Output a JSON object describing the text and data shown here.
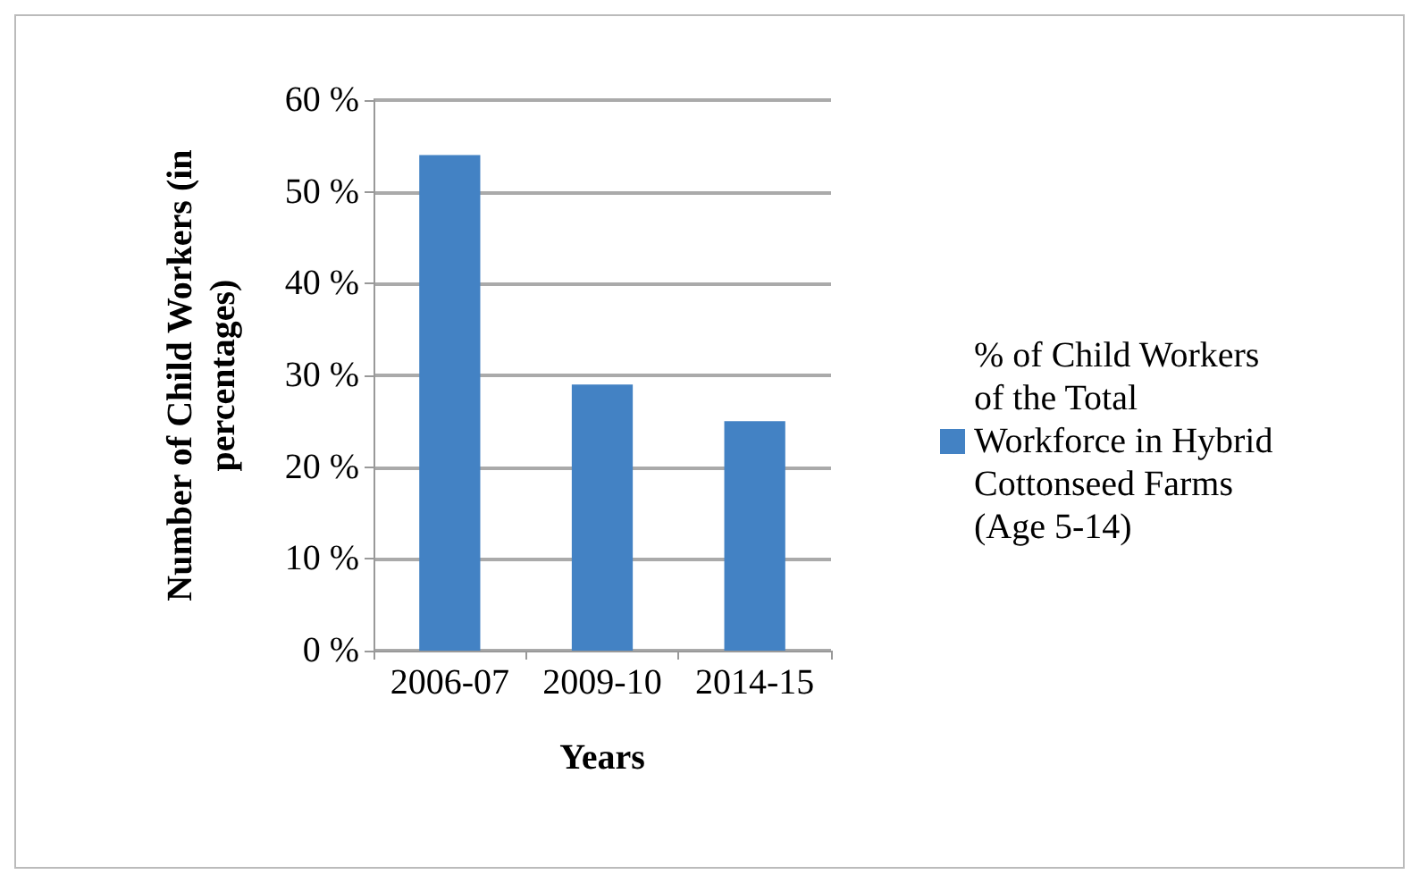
{
  "chart_data": {
    "type": "bar",
    "xlabel": "Years",
    "ylabel": "Number of Child Workers (in percentages)",
    "categories": [
      "2006-07",
      "2009-10",
      "2014-15"
    ],
    "series": [
      {
        "name": "% of Child Workers of the Total Workforce in Hybrid Cottonseed Farms (Age 5-14)",
        "color": "#4382c4",
        "values": [
          54,
          29,
          25
        ]
      }
    ],
    "ylim": [
      0,
      60
    ],
    "yticks": [
      {
        "value": 0,
        "label": "0 %"
      },
      {
        "value": 10,
        "label": "10 %"
      },
      {
        "value": 20,
        "label": "20 %"
      },
      {
        "value": 30,
        "label": "30 %"
      },
      {
        "value": 40,
        "label": "40 %"
      },
      {
        "value": 50,
        "label": "50 %"
      },
      {
        "value": 60,
        "label": "60 %"
      }
    ],
    "grid": "y",
    "legend": "right"
  }
}
